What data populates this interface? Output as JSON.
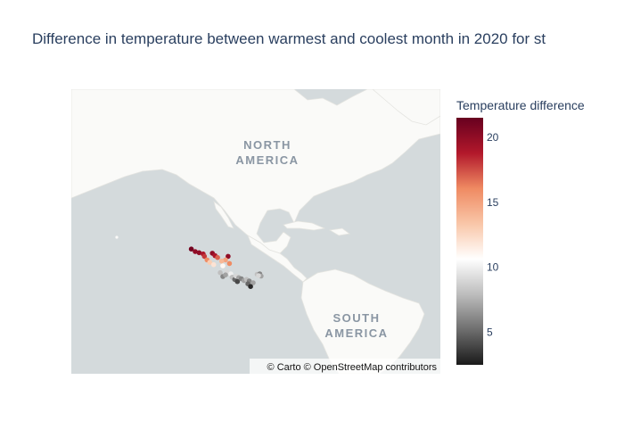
{
  "chart_data": {
    "type": "scatter",
    "title": "Difference in temperature between warmest and coolest month in 2020 for st",
    "colorbar": {
      "title": "Temperature difference",
      "range": [
        2.5,
        21.5
      ],
      "ticks": [
        5,
        10,
        15,
        20
      ],
      "colorscale": [
        "#1a1a1a",
        "#6e6e6e",
        "#bdbdbd",
        "#ffffff",
        "#f9c6a8",
        "#ef8a62",
        "#b2182b",
        "#67001f"
      ]
    },
    "map_labels": [
      {
        "id": "north-america",
        "lines": [
          "NORTH",
          "AMERICA"
        ]
      },
      {
        "id": "south-america",
        "lines": [
          "SOUTH",
          "AMERICA"
        ]
      }
    ],
    "attribution": "© Carto © OpenStreetMap contributors",
    "points": [
      {
        "lon": -114.5,
        "lat": 31.5,
        "value": 21
      },
      {
        "lon": -113.0,
        "lat": 30.5,
        "value": 20
      },
      {
        "lon": -111.5,
        "lat": 30.0,
        "value": 20
      },
      {
        "lon": -110.0,
        "lat": 29.5,
        "value": 19
      },
      {
        "lon": -109.5,
        "lat": 28.5,
        "value": 18
      },
      {
        "lon": -106.5,
        "lat": 29.8,
        "value": 20
      },
      {
        "lon": -105.5,
        "lat": 28.8,
        "value": 19
      },
      {
        "lon": -104.5,
        "lat": 28.0,
        "value": 17
      },
      {
        "lon": -100.5,
        "lat": 28.5,
        "value": 20
      },
      {
        "lon": -101.5,
        "lat": 27.0,
        "value": 15
      },
      {
        "lon": -103.0,
        "lat": 26.5,
        "value": 14
      },
      {
        "lon": -108.5,
        "lat": 27.0,
        "value": 16
      },
      {
        "lon": -107.5,
        "lat": 26.0,
        "value": 13
      },
      {
        "lon": -106.0,
        "lat": 25.0,
        "value": 12
      },
      {
        "lon": -102.5,
        "lat": 24.5,
        "value": 11
      },
      {
        "lon": -100.0,
        "lat": 25.5,
        "value": 16
      },
      {
        "lon": -101.0,
        "lat": 22.0,
        "value": 9
      },
      {
        "lon": -103.5,
        "lat": 21.5,
        "value": 8
      },
      {
        "lon": -99.5,
        "lat": 21.0,
        "value": 10
      },
      {
        "lon": -102.5,
        "lat": 19.8,
        "value": 6
      },
      {
        "lon": -101.5,
        "lat": 20.5,
        "value": 7
      },
      {
        "lon": -99.0,
        "lat": 19.5,
        "value": 8
      },
      {
        "lon": -98.0,
        "lat": 18.5,
        "value": 5
      },
      {
        "lon": -97.5,
        "lat": 20.0,
        "value": 9
      },
      {
        "lon": -96.5,
        "lat": 19.3,
        "value": 7
      },
      {
        "lon": -95.5,
        "lat": 18.8,
        "value": 6
      },
      {
        "lon": -97.0,
        "lat": 17.5,
        "value": 4
      },
      {
        "lon": -94.5,
        "lat": 18.0,
        "value": 7
      },
      {
        "lon": -93.5,
        "lat": 18.5,
        "value": 8
      },
      {
        "lon": -92.5,
        "lat": 17.8,
        "value": 6
      },
      {
        "lon": -93.0,
        "lat": 16.5,
        "value": 5
      },
      {
        "lon": -91.0,
        "lat": 17.0,
        "value": 7
      },
      {
        "lon": -92.0,
        "lat": 15.3,
        "value": 3
      },
      {
        "lon": -89.5,
        "lat": 20.8,
        "value": 8
      },
      {
        "lon": -88.5,
        "lat": 21.0,
        "value": 6
      },
      {
        "lon": -88.0,
        "lat": 20.0,
        "value": 7
      },
      {
        "lon": -89.0,
        "lat": 20.2,
        "value": 9
      }
    ]
  }
}
